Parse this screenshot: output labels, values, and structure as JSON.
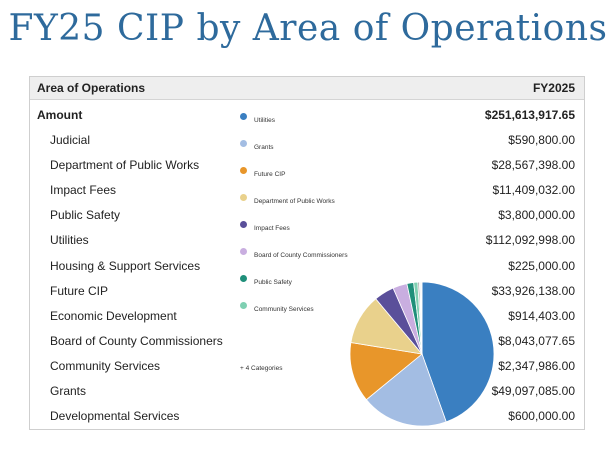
{
  "title": "FY25 CIP by Area of Operations",
  "table": {
    "col_left": "Area of Operations",
    "col_right": "FY2025",
    "total_label": "Amount",
    "total_value": "$251,613,917.65",
    "rows": [
      {
        "label": "Judicial",
        "value": "$590,800.00"
      },
      {
        "label": "Department of Public Works",
        "value": "$28,567,398.00"
      },
      {
        "label": "Impact Fees",
        "value": "$11,409,032.00"
      },
      {
        "label": "Public Safety",
        "value": "$3,800,000.00"
      },
      {
        "label": "Utilities",
        "value": "$112,092,998.00"
      },
      {
        "label": "Housing & Support Services",
        "value": "$225,000.00"
      },
      {
        "label": "Future CIP",
        "value": "$33,926,138.00"
      },
      {
        "label": "Economic Development",
        "value": "$914,403.00"
      },
      {
        "label": "Board of County Commissioners",
        "value": "$8,043,077.65"
      },
      {
        "label": "Community Services",
        "value": "$2,347,986.00"
      },
      {
        "label": "Grants",
        "value": "$49,097,085.00"
      },
      {
        "label": "Developmental Services",
        "value": "$600,000.00"
      }
    ]
  },
  "legend": {
    "items": [
      {
        "label": "Utilities",
        "color": "#3a7fc1"
      },
      {
        "label": "Grants",
        "color": "#a3bde3"
      },
      {
        "label": "Future CIP",
        "color": "#e8962a"
      },
      {
        "label": "Department of Public Works",
        "color": "#e9d18c"
      },
      {
        "label": "Impact Fees",
        "color": "#5a4f9a"
      },
      {
        "label": "Board of County Commissioners",
        "color": "#c9aee0"
      },
      {
        "label": "Public Safety",
        "color": "#1f8f7a"
      },
      {
        "label": "Community Services",
        "color": "#7fd0b2"
      }
    ],
    "more": "+ 4 Categories"
  },
  "chart_data": {
    "type": "pie",
    "title": "",
    "slices": [
      {
        "name": "Utilities",
        "value": 112092998.0,
        "color": "#3a7fc1"
      },
      {
        "name": "Grants",
        "value": 49097085.0,
        "color": "#a3bde3"
      },
      {
        "name": "Future CIP",
        "value": 33926138.0,
        "color": "#e8962a"
      },
      {
        "name": "Department of Public Works",
        "value": 28567398.0,
        "color": "#e9d18c"
      },
      {
        "name": "Impact Fees",
        "value": 11409032.0,
        "color": "#5a4f9a"
      },
      {
        "name": "Board of County Commissioners",
        "value": 8043077.65,
        "color": "#c9aee0"
      },
      {
        "name": "Public Safety",
        "value": 3800000.0,
        "color": "#1f8f7a"
      },
      {
        "name": "Community Services",
        "value": 2347986.0,
        "color": "#7fd0b2"
      },
      {
        "name": "Economic Development",
        "value": 914403.0,
        "color": "#9a9a9a"
      },
      {
        "name": "Developmental Services",
        "value": 600000.0,
        "color": "#b5b5b5"
      },
      {
        "name": "Judicial",
        "value": 590800.0,
        "color": "#cfcfcf"
      },
      {
        "name": "Housing & Support Services",
        "value": 225000.0,
        "color": "#dddddd"
      }
    ]
  }
}
